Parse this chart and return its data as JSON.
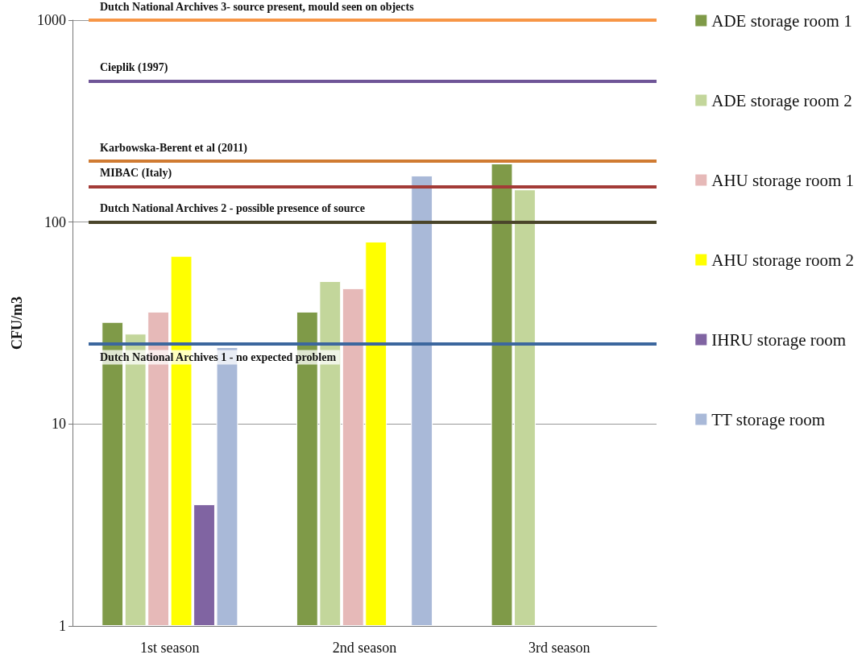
{
  "chart_data": {
    "type": "bar",
    "ylabel": "CFU/m3",
    "categories": [
      "1st season",
      "2nd season",
      "3rd season"
    ],
    "series": [
      {
        "name": "ADE storage room 1",
        "color": "#7f9a48",
        "values": [
          32,
          36,
          195
        ]
      },
      {
        "name": "ADE storage room 2",
        "color": "#c3d69b",
        "values": [
          28,
          51,
          145
        ]
      },
      {
        "name": "AHU storage room 1",
        "color": "#e6b9b8",
        "values": [
          36,
          47,
          null
        ]
      },
      {
        "name": "AHU storage room 2",
        "color": "#ffff00",
        "values": [
          68,
          80,
          null
        ]
      },
      {
        "name": "IHRU storage room",
        "color": "#8064a2",
        "values": [
          4,
          null,
          null
        ]
      },
      {
        "name": "TT storage room",
        "color": "#a9b9d8",
        "values": [
          24,
          170,
          null
        ]
      }
    ],
    "log": "y",
    "ylim": [
      1,
      1000
    ],
    "yticks": [
      1,
      10,
      100,
      1000
    ],
    "grid": "y",
    "legend": "right",
    "ref_lines": [
      {
        "axis": "y",
        "value": 1000,
        "label": "Dutch National Archives 3- source present, mould seen on objects",
        "color": "#f79646"
      },
      {
        "axis": "y",
        "value": 500,
        "label": "Cieplik (1997)",
        "color": "#6f5597"
      },
      {
        "axis": "y",
        "value": 200,
        "label": "Karbowska-Berent et al (2011)",
        "color": "#d07b32"
      },
      {
        "axis": "y",
        "value": 150,
        "label": "MIBAC (Italy)",
        "color": "#a33b37"
      },
      {
        "axis": "y",
        "value": 100,
        "label": "Dutch National Archives 2 - possible presence of source",
        "color": "#4a452a"
      },
      {
        "axis": "y",
        "value": 25,
        "label": "Dutch National Archives 1 - no expected problem",
        "color": "#3c679e"
      }
    ]
  }
}
